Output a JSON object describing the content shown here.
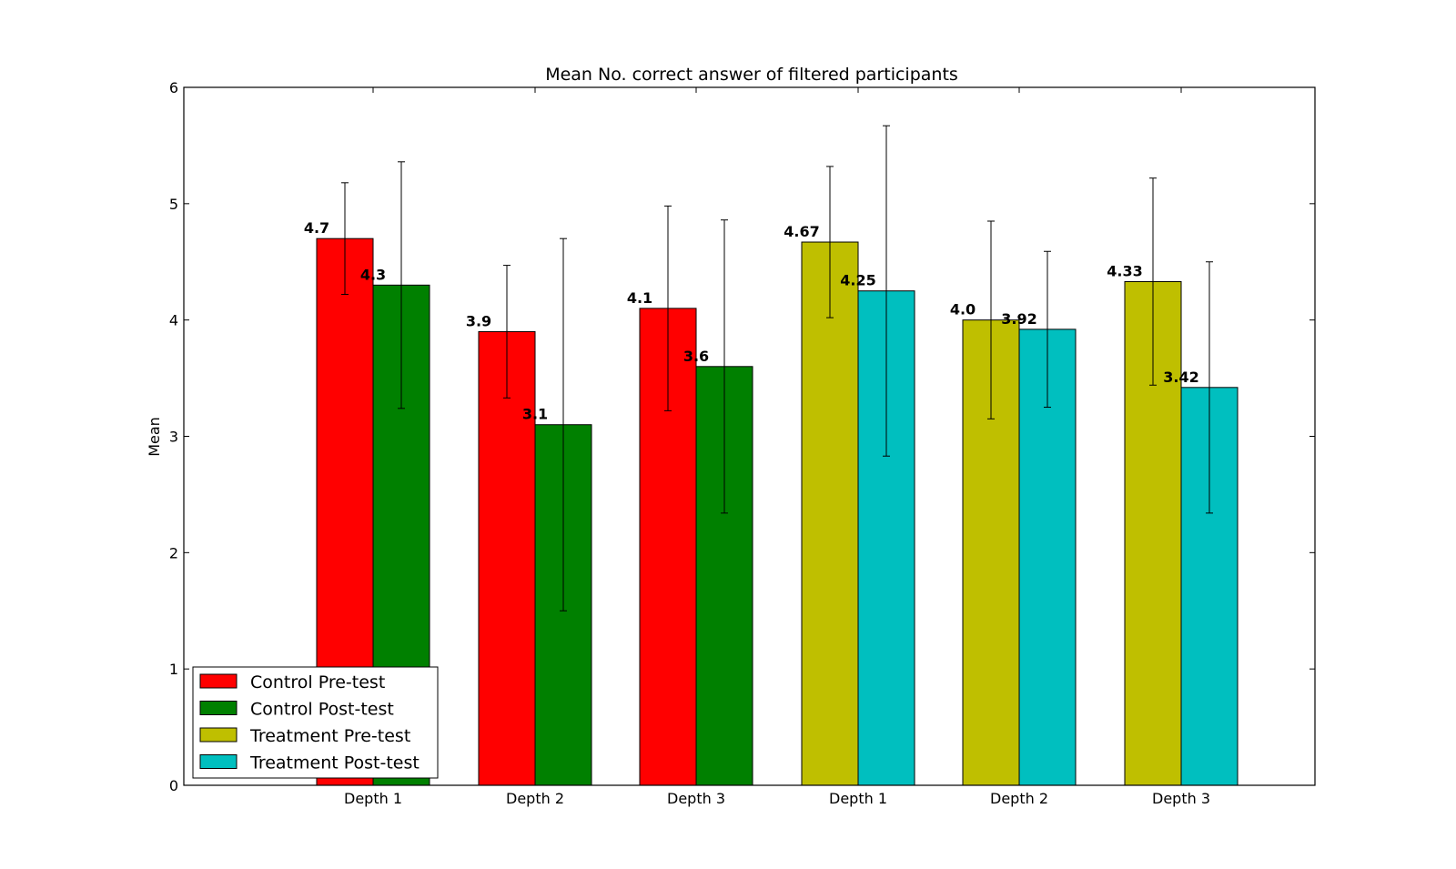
{
  "chart_data": {
    "type": "bar",
    "title": "Mean No. correct answer of filtered participants",
    "xlabel": "",
    "ylabel": "Mean",
    "ylim": [
      0,
      6
    ],
    "yticks": [
      "0",
      "1",
      "2",
      "3",
      "4",
      "5",
      "6"
    ],
    "grid": false,
    "legend_position": "lower-left",
    "groups": [
      {
        "label": "Depth 1",
        "bars": [
          {
            "series": "Control Pre-test",
            "value": 4.7,
            "error": 0.48,
            "label": "4.7"
          },
          {
            "series": "Control Post-test",
            "value": 4.3,
            "error": 1.06,
            "label": "4.3"
          }
        ]
      },
      {
        "label": "Depth 2",
        "bars": [
          {
            "series": "Control Pre-test",
            "value": 3.9,
            "error": 0.57,
            "label": "3.9"
          },
          {
            "series": "Control Post-test",
            "value": 3.1,
            "error": 1.6,
            "label": "3.1"
          }
        ]
      },
      {
        "label": "Depth 3",
        "bars": [
          {
            "series": "Control Pre-test",
            "value": 4.1,
            "error": 0.88,
            "label": "4.1"
          },
          {
            "series": "Control Post-test",
            "value": 3.6,
            "error": 1.26,
            "label": "3.6"
          }
        ]
      },
      {
        "label": "Depth 1",
        "bars": [
          {
            "series": "Treatment Pre-test",
            "value": 4.67,
            "error": 0.65,
            "label": "4.67"
          },
          {
            "series": "Treatment Post-test",
            "value": 4.25,
            "error": 1.42,
            "label": "4.25"
          }
        ]
      },
      {
        "label": "Depth 2",
        "bars": [
          {
            "series": "Treatment Pre-test",
            "value": 4.0,
            "error": 0.85,
            "label": "4.0"
          },
          {
            "series": "Treatment Post-test",
            "value": 3.92,
            "error": 0.67,
            "label": "3.92"
          }
        ]
      },
      {
        "label": "Depth 3",
        "bars": [
          {
            "series": "Treatment Pre-test",
            "value": 4.33,
            "error": 0.89,
            "label": "4.33"
          },
          {
            "series": "Treatment Post-test",
            "value": 3.42,
            "error": 1.08,
            "label": "3.42"
          }
        ]
      }
    ],
    "series": [
      {
        "name": "Control Pre-test",
        "color": "#ff0000"
      },
      {
        "name": "Control Post-test",
        "color": "#008000"
      },
      {
        "name": "Treatment Pre-test",
        "color": "#bfbf00"
      },
      {
        "name": "Treatment Post-test",
        "color": "#00bfbf"
      }
    ]
  }
}
